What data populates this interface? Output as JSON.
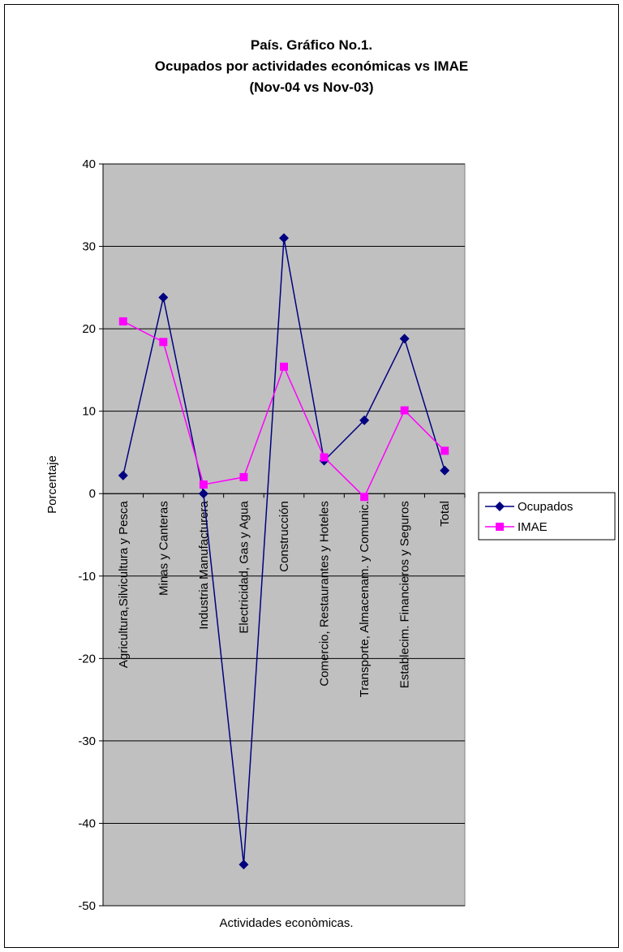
{
  "chart_data": {
    "type": "line",
    "title": [
      "País. Gráfico No.1.",
      "Ocupados por actividades económicas vs IMAE",
      "(Nov-04 vs Nov-03)"
    ],
    "xlabel": "Actividades econòmicas.",
    "ylabel": "Porcentaje",
    "ylim": [
      -50,
      40
    ],
    "yticks": [
      40,
      30,
      20,
      10,
      0,
      -10,
      -20,
      -30,
      -40,
      -50
    ],
    "grid": true,
    "legend_position": "right",
    "categories": [
      "Agricultura,Silvicultura y Pesca",
      "Minas y Canteras",
      "Industria Manufacturera",
      "Electricidad, Gas y Agua",
      "Construcción",
      "Comercio, Restaurantes y Hoteles",
      "Transporte, Almacenam. y Comunic.",
      "Establecim. Financieros y Seguros",
      "Total"
    ],
    "series": [
      {
        "name": "Ocupados",
        "marker": "diamond",
        "color": "#000080",
        "values": [
          2.2,
          23.8,
          0.0,
          -45.0,
          31.0,
          4.0,
          8.9,
          18.8,
          2.8
        ]
      },
      {
        "name": "IMAE",
        "marker": "square",
        "color": "#ff00ff",
        "values": [
          20.9,
          18.4,
          1.1,
          2.0,
          15.4,
          4.4,
          -0.4,
          10.1,
          5.2
        ]
      }
    ],
    "plot_background": "#c0c0c0"
  }
}
